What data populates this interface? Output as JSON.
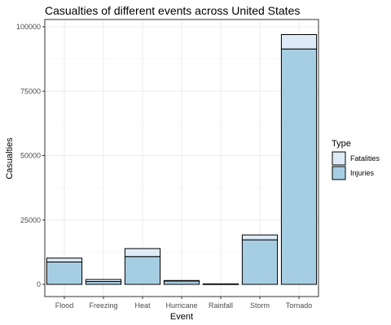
{
  "chart_data": {
    "type": "bar",
    "stacked": true,
    "title": "Casualties of different events across United States",
    "xlabel": "Event",
    "ylabel": "Casualties",
    "categories": [
      "Flood",
      "Freezing",
      "Heat",
      "Hurricane",
      "Rainfall",
      "Storm",
      "Tornado"
    ],
    "series": [
      {
        "name": "Injuries",
        "color": "#a6cee3",
        "values": [
          8700,
          1100,
          10800,
          1300,
          100,
          17300,
          91400
        ]
      },
      {
        "name": "Fatalities",
        "color": "#deebf7",
        "values": [
          1500,
          800,
          3100,
          200,
          100,
          1900,
          5600
        ]
      }
    ],
    "ylim": [
      0,
      100000
    ],
    "yticks": [
      0,
      25000,
      50000,
      75000,
      100000
    ],
    "ytick_labels": [
      "0",
      "25000",
      "50000",
      "75000",
      "100000"
    ],
    "grid": true,
    "legend": {
      "title": "Type",
      "position": "right",
      "entries": [
        "Fatalities",
        "Injuries"
      ]
    }
  }
}
